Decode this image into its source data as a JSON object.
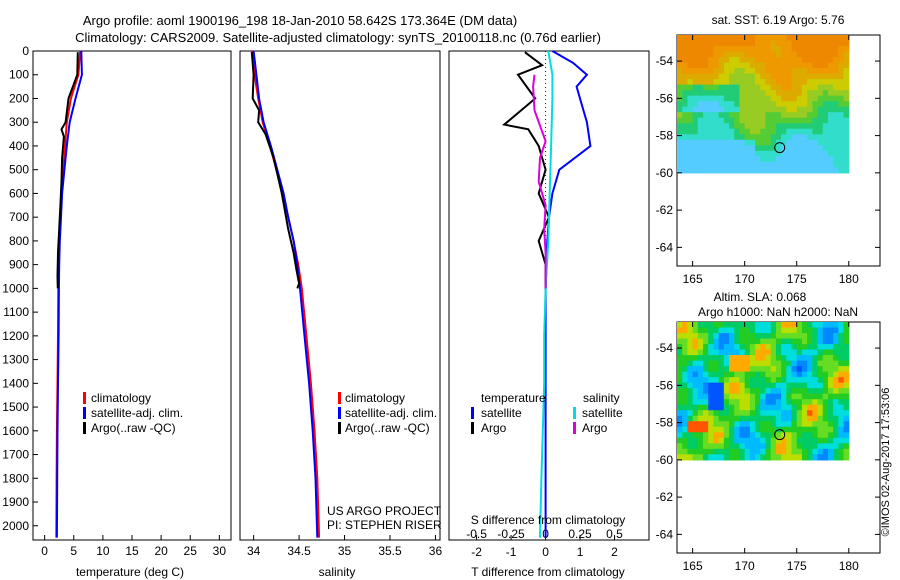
{
  "header": {
    "title_line1": "Argo profile: aoml 1900196_198 18-Jan-2010 58.642S 173.364E (DM data)",
    "title_line2": "Climatology: CARS2009. Satellite-adjusted climatology: synTS_20100118.nc (0.76d earlier)"
  },
  "side_label": "©IMOS 02-Aug-2017 17:53:06",
  "colors": {
    "climatology": "#ff0000",
    "satellite_adj": "#0000ff",
    "argo": "#000000",
    "sat_salinity": "#00dddd",
    "argo_salinity": "#dd00dd",
    "zero_line": "#0000ff"
  },
  "chart_data": [
    {
      "id": "temperature",
      "type": "line",
      "xlabel": "temperature (deg C)",
      "xlim": [
        -2,
        32
      ],
      "xticks": [
        0,
        5,
        10,
        15,
        20,
        25,
        30
      ],
      "ylim": [
        0,
        2060
      ],
      "yticks": [
        0,
        100,
        200,
        300,
        400,
        500,
        600,
        700,
        800,
        900,
        1000,
        1100,
        1200,
        1300,
        1400,
        1500,
        1600,
        1700,
        1800,
        1900,
        2000
      ],
      "legend": [
        "climatology",
        "satellite-adj. clim.",
        "Argo(..raw -QC)"
      ],
      "series": [
        {
          "name": "climatology",
          "x": [
            6.1,
            5.8,
            4.5,
            3.8,
            3.5,
            3.2,
            2.9,
            2.7,
            2.5,
            2.4,
            2.35,
            2.3,
            2.2,
            2.1,
            2.05,
            2.0
          ],
          "y": [
            0,
            100,
            200,
            300,
            400,
            500,
            600,
            700,
            800,
            900,
            1000,
            1200,
            1400,
            1600,
            1800,
            2050
          ]
        },
        {
          "name": "satellite-adj. clim.",
          "x": [
            6.3,
            6.4,
            5.3,
            4.3,
            3.8,
            3.4,
            3.0,
            2.8,
            2.6,
            2.5,
            2.45,
            2.4,
            2.3,
            2.2,
            2.15,
            2.1
          ],
          "y": [
            0,
            100,
            200,
            300,
            400,
            500,
            600,
            700,
            800,
            900,
            1000,
            1200,
            1400,
            1600,
            1800,
            2050
          ]
        },
        {
          "name": "Argo(..raw -QC)",
          "x": [
            5.7,
            5.6,
            4.1,
            3.6,
            2.9,
            3.3,
            3.0,
            2.9,
            2.7,
            2.5,
            2.3,
            2.2,
            2.25
          ],
          "y": [
            5,
            100,
            200,
            300,
            330,
            360,
            450,
            550,
            650,
            750,
            850,
            950,
            1000
          ]
        }
      ]
    },
    {
      "id": "salinity",
      "type": "line",
      "xlabel": "salinity",
      "xlim": [
        33.85,
        36.05
      ],
      "xticks": [
        34,
        34.5,
        35,
        35.5,
        36
      ],
      "xtick_labels": [
        "34",
        "34.5",
        "35",
        "35.5",
        "36"
      ],
      "ylim": [
        0,
        2060
      ],
      "legend": [
        "climatology",
        "satellite-adj. clim.",
        "Argo(..raw -QC)"
      ],
      "annotation": [
        "US ARGO PROJECT",
        "PI: STEPHEN RISER"
      ],
      "series": [
        {
          "name": "climatology",
          "x": [
            33.98,
            34.01,
            34.05,
            34.1,
            34.18,
            34.25,
            34.32,
            34.38,
            34.44,
            34.49,
            34.53,
            34.58,
            34.63,
            34.67,
            34.7,
            34.72
          ],
          "y": [
            0,
            100,
            200,
            300,
            400,
            500,
            600,
            700,
            800,
            900,
            1000,
            1200,
            1400,
            1600,
            1800,
            2050
          ]
        },
        {
          "name": "satellite-adj. clim.",
          "x": [
            34.0,
            34.03,
            34.06,
            34.11,
            34.19,
            34.26,
            34.33,
            34.38,
            34.44,
            34.48,
            34.51,
            34.56,
            34.61,
            34.65,
            34.68,
            34.7
          ],
          "y": [
            0,
            100,
            200,
            300,
            400,
            500,
            600,
            700,
            800,
            900,
            1000,
            1200,
            1400,
            1600,
            1800,
            2050
          ]
        },
        {
          "name": "Argo(..raw -QC)",
          "x": [
            33.98,
            34.0,
            33.99,
            34.06,
            34.05,
            34.13,
            34.22,
            34.31,
            34.38,
            34.44,
            34.47,
            34.5,
            34.48
          ],
          "y": [
            5,
            100,
            200,
            250,
            300,
            350,
            450,
            600,
            750,
            850,
            920,
            980,
            1000
          ]
        }
      ]
    },
    {
      "id": "difference",
      "type": "line",
      "xlabel_bottom": "T difference from climatology",
      "xlabel_top": "S difference from climatology",
      "xlim": [
        -2.8,
        3.0
      ],
      "xticks_T": [
        -2,
        -1,
        0,
        1,
        2
      ],
      "xticks_S": [
        -0.5,
        -0.25,
        0,
        0.25,
        0.5
      ],
      "xticks_S_labels": [
        "-0.5",
        "-0.25",
        "0",
        "0.25",
        "0.5"
      ],
      "ylim": [
        0,
        2060
      ],
      "legend_headers": [
        "temperature",
        "salinity"
      ],
      "legend": [
        "satellite",
        "Argo",
        "satellite",
        "Argo"
      ],
      "series": [
        {
          "name": "satellite",
          "quantity": "temperature",
          "x": [
            0.2,
            0.8,
            1.2,
            0.9,
            1.0,
            1.2,
            1.3,
            0.4,
            0.2,
            0.1,
            0.05,
            0.0,
            0.0,
            0.0,
            0.0
          ],
          "y": [
            0,
            50,
            100,
            150,
            200,
            300,
            400,
            500,
            600,
            700,
            800,
            1000,
            1400,
            1800,
            2050
          ]
        },
        {
          "name": "Argo",
          "quantity": "temperature",
          "x": [
            -0.6,
            -0.1,
            -0.8,
            -0.3,
            -1.2,
            -0.5,
            -0.2,
            0.0,
            -0.2,
            0.1,
            -0.2,
            0.0,
            0.0
          ],
          "y": [
            5,
            60,
            100,
            200,
            310,
            330,
            400,
            500,
            600,
            700,
            800,
            900,
            1000
          ]
        },
        {
          "name": "satellite",
          "quantity": "salinity",
          "x": [
            0.02,
            0.05,
            0.05,
            0.04,
            0.03,
            0.02,
            0.0,
            -0.01,
            -0.01,
            -0.02,
            -0.03,
            -0.04
          ],
          "y": [
            0,
            100,
            200,
            400,
            600,
            800,
            1000,
            1200,
            1400,
            1600,
            1800,
            2050
          ]
        },
        {
          "name": "Argo",
          "quantity": "salinity",
          "x": [
            -0.08,
            -0.09,
            -0.08,
            0.0,
            -0.04,
            -0.05,
            0.0,
            -0.01,
            0.0,
            0.0
          ],
          "y": [
            100,
            150,
            250,
            380,
            450,
            550,
            650,
            750,
            850,
            1000
          ]
        }
      ]
    },
    {
      "id": "sst_map",
      "type": "heatmap",
      "title": "sat. SST: 6.19 Argo: 5.76",
      "xticks": [
        165,
        170,
        175,
        180
      ],
      "yticks": [
        -54,
        -56,
        -58,
        -60,
        -62,
        -64
      ],
      "xlim": [
        163.5,
        183
      ],
      "ylim": [
        -65,
        -52.6
      ],
      "marker": {
        "lon": 173.364,
        "lat": -58.642
      }
    },
    {
      "id": "sla_map",
      "type": "heatmap",
      "title": "Altim. SLA: 0.068",
      "subtitle": "Argo h1000: NaN h2000: NaN",
      "xticks": [
        165,
        170,
        175,
        180
      ],
      "yticks": [
        -54,
        -56,
        -58,
        -60,
        -62,
        -64
      ],
      "xlim": [
        163.5,
        183
      ],
      "ylim": [
        -65,
        -52.6
      ],
      "marker": {
        "lon": 173.364,
        "lat": -58.642
      }
    }
  ]
}
